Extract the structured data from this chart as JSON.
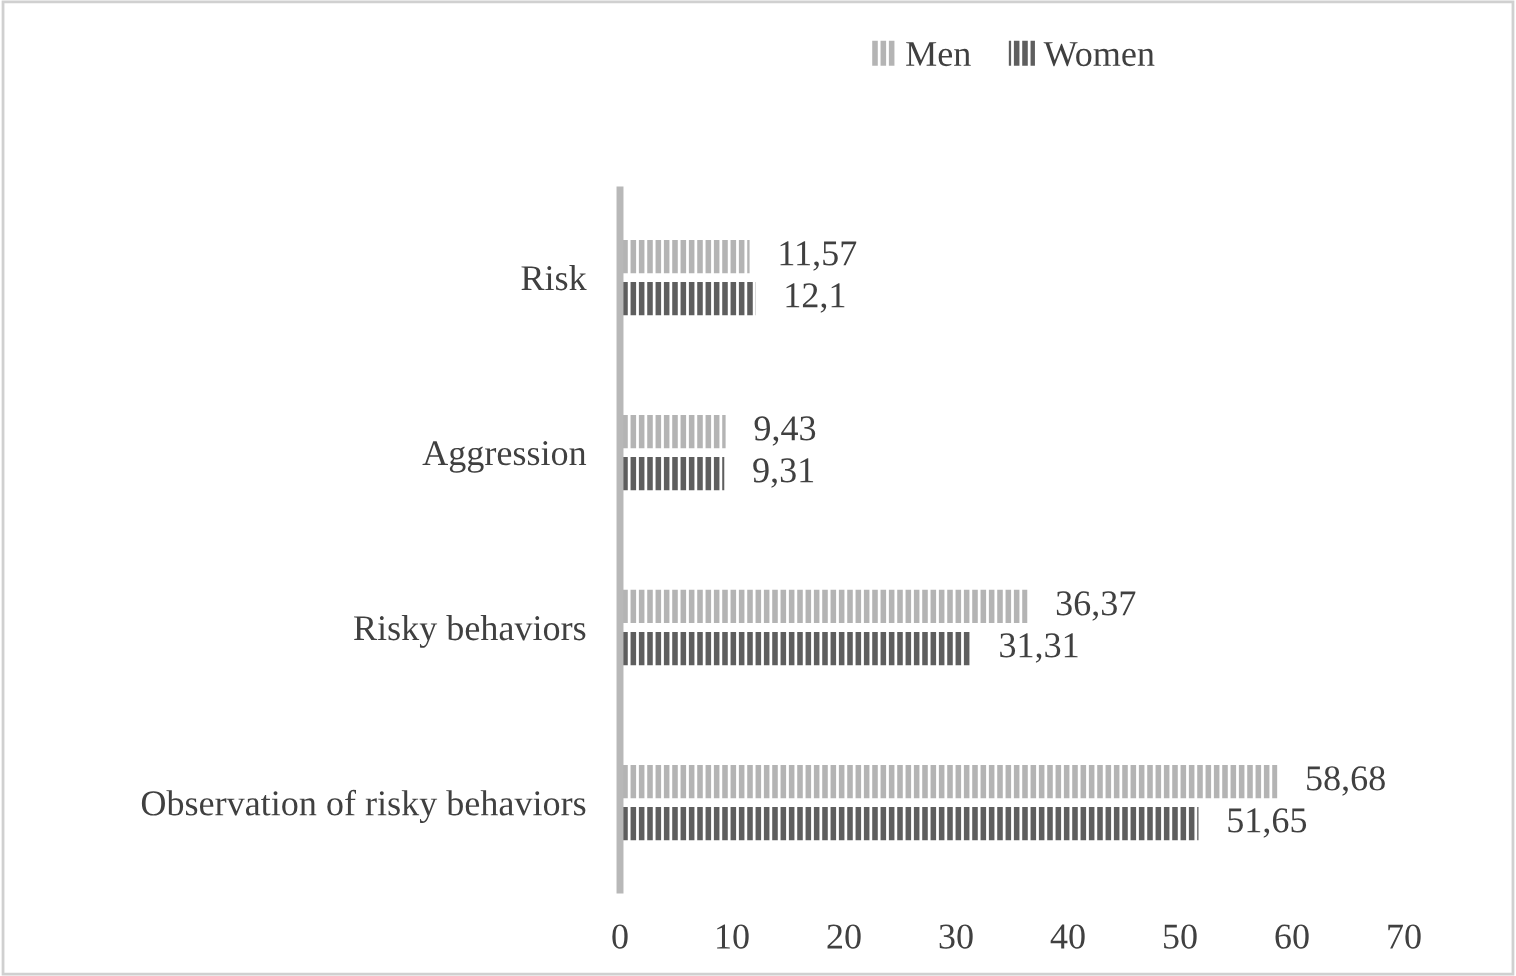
{
  "chart_data": {
    "type": "bar",
    "orientation": "horizontal",
    "categories": [
      "Risk",
      "Aggression",
      "Risky behaviors",
      "Observation of risky behaviors"
    ],
    "series": [
      {
        "name": "Men",
        "color": "#b4b4b4",
        "values": [
          11.57,
          9.43,
          36.37,
          58.68
        ],
        "value_labels": [
          "11,57",
          "9,43",
          "36,37",
          "58,68"
        ]
      },
      {
        "name": "Women",
        "color": "#5e5e5e",
        "values": [
          12.1,
          9.31,
          31.31,
          51.65
        ],
        "value_labels": [
          "12,1",
          "9,31",
          "31,31",
          "51,65"
        ]
      }
    ],
    "xlim": [
      0,
      70
    ],
    "xticks": [
      0,
      10,
      20,
      30,
      40,
      50,
      60,
      70
    ],
    "grid": false,
    "legend": "top"
  }
}
